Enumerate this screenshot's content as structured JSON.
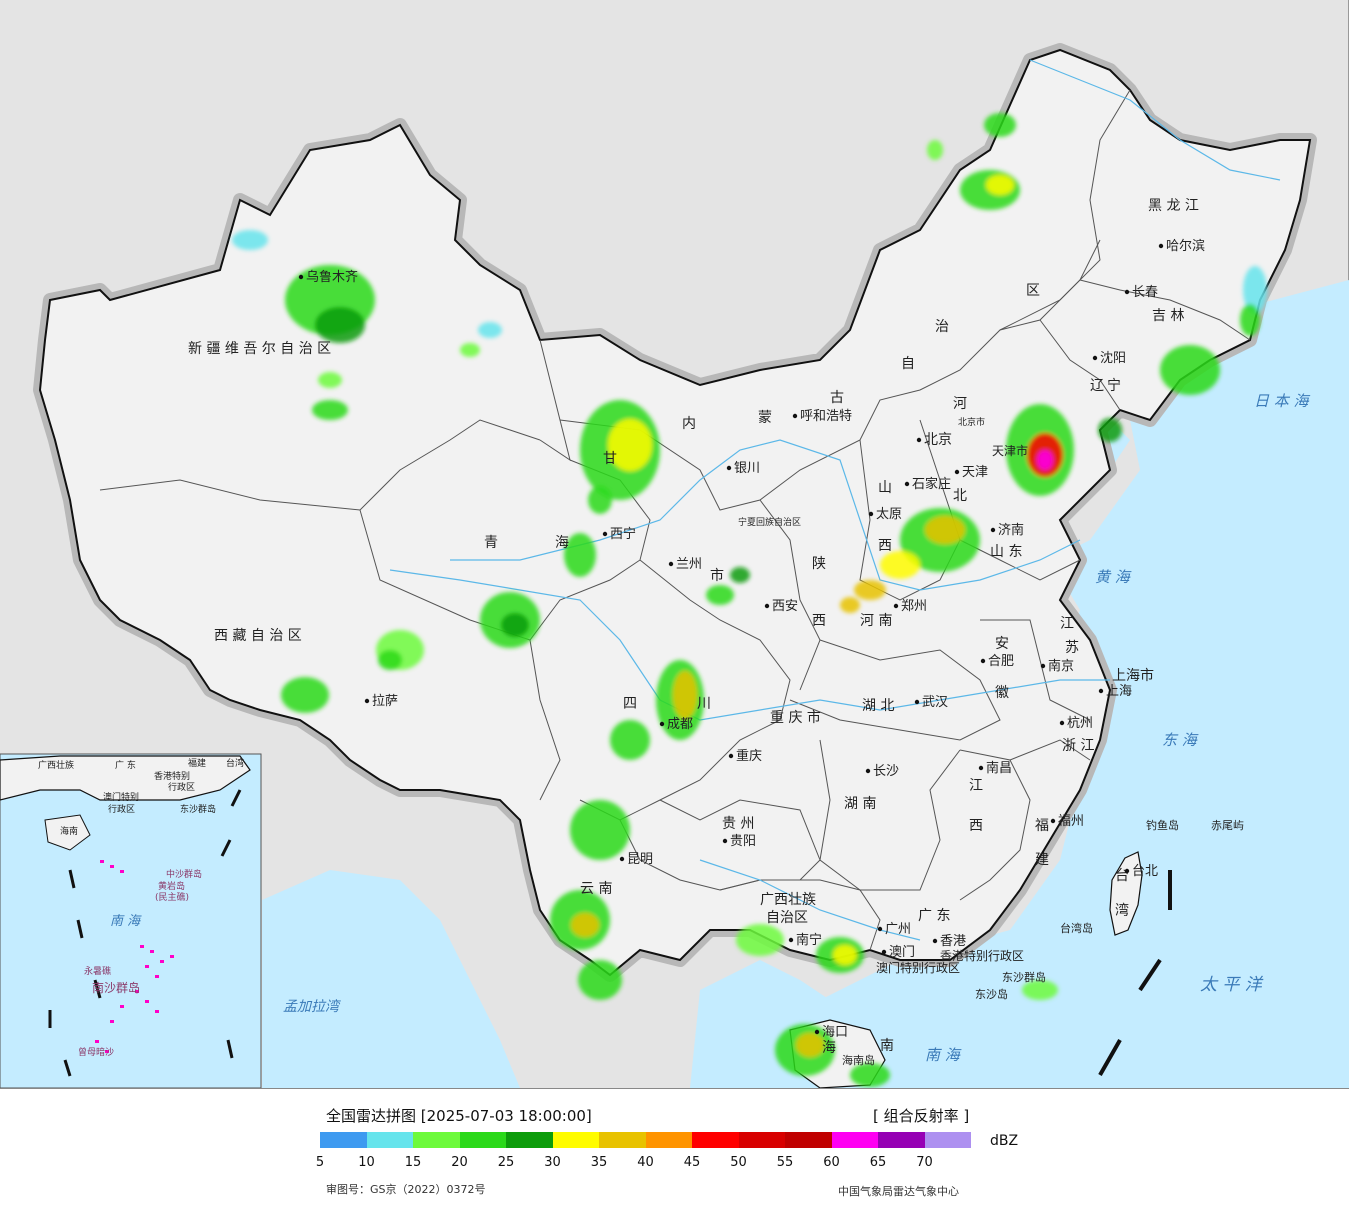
{
  "legend": {
    "title": "全国雷达拼图 [2025-07-03 18:00:00]",
    "product": "[ 组合反射率 ]",
    "unit": "dBZ",
    "approval": "审图号：GS京（2022）0372号",
    "center": "中国气象局雷达气象中心",
    "ticks": [
      "5",
      "10",
      "15",
      "20",
      "25",
      "30",
      "35",
      "40",
      "45",
      "50",
      "55",
      "60",
      "65",
      "70"
    ],
    "colors": [
      "#3e9af0",
      "#66e4ec",
      "#6dfa3c",
      "#2bd91a",
      "#0d9c0b",
      "#fffc00",
      "#e8c200",
      "#ff9400",
      "#ff0000",
      "#d80000",
      "#c00000",
      "#ff00f2",
      "#9600b4",
      "#ad90f0"
    ]
  },
  "colors": {
    "sea": "#c4ecff",
    "land": "#f2f2f2",
    "outside": "#e4e4e4",
    "border": "#111111",
    "halo": "#b8b8b8",
    "river": "#5cb8e8"
  },
  "labels": {
    "provinces": [
      {
        "id": "xinjiang",
        "text": "新 疆 维 吾 尔 自 治 区"
      },
      {
        "id": "xizang",
        "text": "西 藏 自 治 区"
      },
      {
        "id": "qinghai-1",
        "text": "青"
      },
      {
        "id": "qinghai-2",
        "text": "海"
      },
      {
        "id": "gansu",
        "text": "甘"
      },
      {
        "id": "neimenggu-1",
        "text": "内"
      },
      {
        "id": "neimenggu-2",
        "text": "蒙"
      },
      {
        "id": "neimenggu-3",
        "text": "古"
      },
      {
        "id": "neimenggu-4",
        "text": "自"
      },
      {
        "id": "neimenggu-5",
        "text": "治"
      },
      {
        "id": "neimenggu-6",
        "text": "区"
      },
      {
        "id": "heilongjiang",
        "text": "黑 龙 江"
      },
      {
        "id": "jilin",
        "text": "吉 林"
      },
      {
        "id": "liaoning-1",
        "text": "辽"
      },
      {
        "id": "liaoning-2",
        "text": "宁"
      },
      {
        "id": "hebei-1",
        "text": "河"
      },
      {
        "id": "hebei-2",
        "text": "北"
      },
      {
        "id": "shanxi-1",
        "text": "山"
      },
      {
        "id": "shanxi-2",
        "text": "西"
      },
      {
        "id": "shandong",
        "text": "山 东"
      },
      {
        "id": "shaanxi-1",
        "text": "陕"
      },
      {
        "id": "shaanxi-2",
        "text": "西"
      },
      {
        "id": "henan",
        "text": "河 南"
      },
      {
        "id": "jiangsu-1",
        "text": "江"
      },
      {
        "id": "jiangsu-2",
        "text": "苏"
      },
      {
        "id": "anhui-1",
        "text": "安"
      },
      {
        "id": "anhui-2",
        "text": "徽"
      },
      {
        "id": "shanghai",
        "text": "上海市"
      },
      {
        "id": "hubei",
        "text": "湖 北"
      },
      {
        "id": "zhejiang",
        "text": "浙 江"
      },
      {
        "id": "sichuan-1",
        "text": "四"
      },
      {
        "id": "sichuan-2",
        "text": "川"
      },
      {
        "id": "chongqing",
        "text": "重 庆 市"
      },
      {
        "id": "guizhou",
        "text": "贵 州"
      },
      {
        "id": "hunan",
        "text": "湖 南"
      },
      {
        "id": "jiangxi-1",
        "text": "江"
      },
      {
        "id": "jiangxi-2",
        "text": "西"
      },
      {
        "id": "fujian-1",
        "text": "福"
      },
      {
        "id": "fujian-2",
        "text": "建"
      },
      {
        "id": "yunnan",
        "text": "云 南"
      },
      {
        "id": "guangxi-1",
        "text": "广西壮族"
      },
      {
        "id": "guangxi-2",
        "text": "自治区"
      },
      {
        "id": "guangdong",
        "text": "广 东"
      },
      {
        "id": "hongkong",
        "text": "香港特别行政区"
      },
      {
        "id": "macau",
        "text": "澳门特别行政区"
      },
      {
        "id": "hainan-1",
        "text": "海"
      },
      {
        "id": "hainan-2",
        "text": "南"
      },
      {
        "id": "taiwan-1",
        "text": "台"
      },
      {
        "id": "taiwan-2",
        "text": "湾"
      },
      {
        "id": "ningxia",
        "text": "宁夏回族自治区"
      },
      {
        "id": "gansu-city",
        "text": "市"
      },
      {
        "id": "beijing-shi",
        "text": "北京市"
      },
      {
        "id": "tianjin-shi",
        "text": "天津市"
      }
    ],
    "cities": [
      {
        "id": "urumqi",
        "text": "乌鲁木齐"
      },
      {
        "id": "lhasa",
        "text": "拉萨"
      },
      {
        "id": "xining",
        "text": "西宁"
      },
      {
        "id": "lanzhou",
        "text": "兰州"
      },
      {
        "id": "yinchuan",
        "text": "银川"
      },
      {
        "id": "hohhot",
        "text": "呼和浩特"
      },
      {
        "id": "harbin",
        "text": "哈尔滨"
      },
      {
        "id": "changchun",
        "text": "长春"
      },
      {
        "id": "shenyang",
        "text": "沈阳"
      },
      {
        "id": "beijing",
        "text": "北京"
      },
      {
        "id": "tianjin",
        "text": "天津"
      },
      {
        "id": "shijiazhuang",
        "text": "石家庄"
      },
      {
        "id": "taiyuan",
        "text": "太原"
      },
      {
        "id": "jinan",
        "text": "济南"
      },
      {
        "id": "xian",
        "text": "西安"
      },
      {
        "id": "zhengzhou",
        "text": "郑州"
      },
      {
        "id": "hefei",
        "text": "合肥"
      },
      {
        "id": "nanjing",
        "text": "南京"
      },
      {
        "id": "shanghai-city",
        "text": "上海"
      },
      {
        "id": "hangzhou",
        "text": "杭州"
      },
      {
        "id": "wuhan",
        "text": "武汉"
      },
      {
        "id": "chengdu",
        "text": "成都"
      },
      {
        "id": "chongqing-city",
        "text": "重庆"
      },
      {
        "id": "changsha",
        "text": "长沙"
      },
      {
        "id": "nanchang",
        "text": "南昌"
      },
      {
        "id": "guiyang",
        "text": "贵阳"
      },
      {
        "id": "fuzhou",
        "text": "福州"
      },
      {
        "id": "kunming",
        "text": "昆明"
      },
      {
        "id": "nanning",
        "text": "南宁"
      },
      {
        "id": "guangzhou",
        "text": "广州"
      },
      {
        "id": "hongkong-city",
        "text": "香港"
      },
      {
        "id": "macau-city",
        "text": "澳门"
      },
      {
        "id": "haikou",
        "text": "海口"
      },
      {
        "id": "taipei",
        "text": "台北"
      }
    ],
    "seas": [
      {
        "id": "sea-of-japan",
        "text": "日 本 海"
      },
      {
        "id": "yellow-sea",
        "text": "黄 海"
      },
      {
        "id": "east-china-sea",
        "text": "东 海"
      },
      {
        "id": "pacific",
        "text": "太 平 洋"
      },
      {
        "id": "south-china-sea",
        "text": "南 海"
      },
      {
        "id": "bay-of-bengal",
        "text": "孟加拉湾"
      }
    ],
    "islands": [
      {
        "id": "diaoyu",
        "text": "钓鱼岛"
      },
      {
        "id": "chiwei",
        "text": "赤尾屿"
      },
      {
        "id": "taiwan-island",
        "text": "台湾岛"
      },
      {
        "id": "dongsha-qundao",
        "text": "东沙群岛"
      },
      {
        "id": "dongsha-dao",
        "text": "东沙岛"
      },
      {
        "id": "hainan-dao",
        "text": "海南岛"
      }
    ],
    "inset": [
      {
        "id": "inset-guangxi",
        "text": "广西壮族"
      },
      {
        "id": "inset-guangdong",
        "text": "广 东"
      },
      {
        "id": "inset-fujian",
        "text": "福建"
      },
      {
        "id": "inset-taiwan",
        "text": "台湾"
      },
      {
        "id": "inset-hongkong-1",
        "text": "香港特别"
      },
      {
        "id": "inset-hongkong-2",
        "text": "行政区"
      },
      {
        "id": "inset-macau-1",
        "text": "澳门特别"
      },
      {
        "id": "inset-macau-2",
        "text": "行政区"
      },
      {
        "id": "inset-dongsha",
        "text": "东沙群岛"
      },
      {
        "id": "inset-hainan",
        "text": "海南"
      },
      {
        "id": "inset-zhongsha",
        "text": "中沙群岛"
      },
      {
        "id": "inset-huangyan-1",
        "text": "黄岩岛"
      },
      {
        "id": "inset-huangyan-2",
        "text": "(民主礁)"
      },
      {
        "id": "inset-sea",
        "text": "南 海"
      },
      {
        "id": "inset-yongshu",
        "text": "永暑礁"
      },
      {
        "id": "inset-nansha",
        "text": "南沙群岛"
      },
      {
        "id": "inset-zengmu",
        "text": "曾母暗沙"
      }
    ]
  }
}
